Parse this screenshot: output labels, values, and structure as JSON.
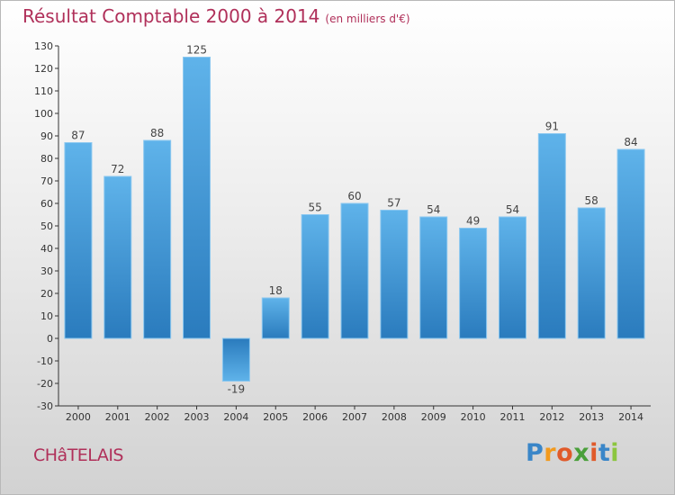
{
  "chart_data": {
    "type": "bar",
    "title": "Résultat Comptable 2000 à 2014",
    "subtitle": "(en milliers d'€)",
    "categories": [
      "2000",
      "2001",
      "2002",
      "2003",
      "2004",
      "2005",
      "2006",
      "2007",
      "2008",
      "2009",
      "2010",
      "2011",
      "2012",
      "2013",
      "2014"
    ],
    "values": [
      87,
      72,
      88,
      125,
      -19,
      18,
      55,
      60,
      57,
      54,
      49,
      54,
      91,
      58,
      84
    ],
    "value_labels": [
      "87",
      "72",
      "88",
      "125",
      "-19",
      "18",
      "55",
      "60",
      "57",
      "54",
      "49",
      "54",
      "91",
      "58",
      "84"
    ],
    "yticks": [
      "130",
      "120",
      "110",
      "100",
      "90",
      "80",
      "70",
      "60",
      "50",
      "40",
      "30",
      "20",
      "10",
      "0",
      "-10",
      "-20",
      "-30"
    ],
    "ylim": [
      -30,
      130
    ],
    "ytick_step": 10,
    "xlabel": "",
    "ylabel": "",
    "grid": false,
    "bar_color_top": "#5fb3ea",
    "bar_color_bottom": "#2a7bbd"
  },
  "commune": "CHâTELAIS",
  "logo": {
    "letters": [
      "P",
      "r",
      "o",
      "x",
      "i",
      "t",
      "i"
    ],
    "colors": [
      "#3a86c8",
      "#f29a1d",
      "#e05a2a",
      "#4a9f3a",
      "#e05a2a",
      "#3a86c8",
      "#8cc63f"
    ]
  },
  "colors": {
    "title": "#b0305a",
    "axis": "#333333"
  }
}
